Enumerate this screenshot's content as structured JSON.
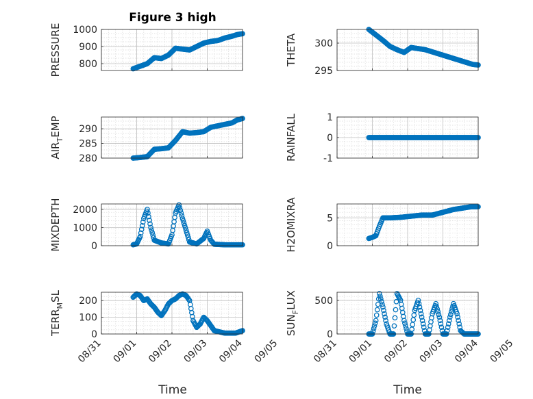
{
  "figure": {
    "title": "Figure 3 high",
    "xlabel": "Time",
    "marker_color": "#0072BD"
  },
  "chart_data": [
    {
      "type": "scatter",
      "name": "PRESSURE",
      "ylabel": "PRESSURE",
      "ylim": [
        760,
        1000
      ],
      "yticks": [
        800,
        900,
        1000
      ],
      "grid": true,
      "x_day_range": [
        0.0,
        4.0
      ],
      "x": [
        0.9,
        1.1,
        1.3,
        1.5,
        1.7,
        1.9,
        2.1,
        2.3,
        2.5,
        2.7,
        2.9,
        3.1,
        3.3,
        3.5,
        3.7,
        3.85,
        4.0
      ],
      "y": [
        770,
        785,
        800,
        835,
        830,
        850,
        890,
        885,
        880,
        900,
        920,
        930,
        935,
        950,
        960,
        970,
        975
      ]
    },
    {
      "type": "scatter",
      "name": "THETA",
      "ylabel": "THETA",
      "ylim": [
        295,
        302.5
      ],
      "yticks": [
        295,
        300
      ],
      "grid": true,
      "x_day_range": [
        0.0,
        4.0
      ],
      "x": [
        0.9,
        1.1,
        1.3,
        1.5,
        1.7,
        1.9,
        2.1,
        2.3,
        2.5,
        2.7,
        2.9,
        3.1,
        3.3,
        3.5,
        3.7,
        3.85,
        4.0
      ],
      "y": [
        302.5,
        301.5,
        300.5,
        299.4,
        298.8,
        298.3,
        299.2,
        299.0,
        298.8,
        298.4,
        298.0,
        297.6,
        297.2,
        296.8,
        296.4,
        296.1,
        296.0
      ]
    },
    {
      "type": "scatter",
      "name": "AIR_TEMP",
      "ylabel": "AIR",
      "ylabel_sub": "T",
      "ylabel_suffix": "EMP",
      "ylim": [
        280,
        294
      ],
      "yticks": [
        280,
        285,
        290
      ],
      "grid": true,
      "x_day_range": [
        0.0,
        4.0
      ],
      "x": [
        0.9,
        1.1,
        1.3,
        1.5,
        1.7,
        1.9,
        2.1,
        2.3,
        2.5,
        2.7,
        2.9,
        3.1,
        3.3,
        3.5,
        3.7,
        3.85,
        4.0
      ],
      "y": [
        280.0,
        280.2,
        280.5,
        283.0,
        283.2,
        283.5,
        286.0,
        289.0,
        288.5,
        288.7,
        289.0,
        290.5,
        291.0,
        291.5,
        292.0,
        293.0,
        293.5
      ]
    },
    {
      "type": "scatter",
      "name": "RAINFALL",
      "ylabel": "RAINFALL",
      "ylim": [
        -1,
        1
      ],
      "yticks": [
        -1,
        0,
        1
      ],
      "grid": true,
      "x_day_range": [
        0.0,
        4.0
      ],
      "x": [
        0.9,
        1.2,
        1.5,
        1.8,
        2.1,
        2.4,
        2.7,
        3.0,
        3.3,
        3.6,
        3.9,
        4.0
      ],
      "y": [
        0,
        0,
        0,
        0,
        0,
        0,
        0,
        0,
        0,
        0,
        0,
        0
      ]
    },
    {
      "type": "scatter",
      "name": "MIXDEPTH",
      "ylabel": "MIXDEPTH",
      "ylim": [
        0,
        2300
      ],
      "yticks": [
        0,
        1000,
        2000
      ],
      "grid": true,
      "x_day_range": [
        0.0,
        4.0
      ],
      "x": [
        0.9,
        1.0,
        1.1,
        1.2,
        1.3,
        1.4,
        1.5,
        1.7,
        1.9,
        2.0,
        2.1,
        2.2,
        2.3,
        2.5,
        2.7,
        2.9,
        3.0,
        3.1,
        3.2,
        3.5,
        3.8,
        4.0
      ],
      "y": [
        50,
        100,
        500,
        1500,
        2000,
        1000,
        300,
        150,
        100,
        600,
        1800,
        2250,
        1500,
        200,
        100,
        400,
        800,
        300,
        80,
        50,
        50,
        50
      ]
    },
    {
      "type": "scatter",
      "name": "H2OMIXRA",
      "ylabel": "H2OMIXRA",
      "ylim": [
        0,
        7.5
      ],
      "yticks": [
        0,
        5
      ],
      "grid": true,
      "x_day_range": [
        0.0,
        4.0
      ],
      "x": [
        0.9,
        1.0,
        1.1,
        1.2,
        1.3,
        1.5,
        1.8,
        2.1,
        2.4,
        2.7,
        3.0,
        3.3,
        3.6,
        3.8,
        4.0
      ],
      "y": [
        1.3,
        1.5,
        1.8,
        3.5,
        5.0,
        5.0,
        5.1,
        5.3,
        5.5,
        5.5,
        6.0,
        6.5,
        6.8,
        7.0,
        7.0
      ]
    },
    {
      "type": "scatter",
      "name": "TERR_MSL",
      "ylabel": "TERR",
      "ylabel_sub": "M",
      "ylabel_suffix": "SL",
      "ylim": [
        0,
        250
      ],
      "yticks": [
        0,
        100,
        200
      ],
      "grid": true,
      "x_day_range": [
        0.0,
        4.0
      ],
      "x": [
        0.9,
        1.0,
        1.1,
        1.2,
        1.3,
        1.4,
        1.5,
        1.6,
        1.7,
        1.8,
        1.9,
        2.0,
        2.1,
        2.2,
        2.3,
        2.4,
        2.5,
        2.6,
        2.7,
        2.8,
        2.9,
        3.0,
        3.1,
        3.2,
        3.4,
        3.5,
        3.6,
        3.7,
        3.8,
        4.0
      ],
      "y": [
        220,
        240,
        230,
        200,
        210,
        180,
        160,
        130,
        110,
        140,
        180,
        200,
        210,
        230,
        240,
        230,
        200,
        80,
        40,
        60,
        100,
        80,
        50,
        20,
        10,
        5,
        5,
        5,
        5,
        20
      ]
    },
    {
      "type": "scatter",
      "name": "SUN_FLUX",
      "ylabel": "SUN",
      "ylabel_sub": "F",
      "ylabel_suffix": "LUX",
      "ylim": [
        0,
        620
      ],
      "yticks": [
        0,
        500
      ],
      "grid": true,
      "x_day_range": [
        0.0,
        4.0
      ],
      "x": [
        0.9,
        1.0,
        1.1,
        1.2,
        1.3,
        1.4,
        1.5,
        1.6,
        1.7,
        1.8,
        1.9,
        2.0,
        2.1,
        2.2,
        2.3,
        2.4,
        2.5,
        2.6,
        2.7,
        2.8,
        2.9,
        3.0,
        3.1,
        3.2,
        3.3,
        3.4,
        3.5,
        3.6,
        3.7,
        3.8,
        3.9,
        4.0
      ],
      "y": [
        0,
        0,
        200,
        600,
        400,
        150,
        0,
        0,
        600,
        500,
        200,
        0,
        0,
        350,
        500,
        250,
        0,
        0,
        300,
        450,
        250,
        0,
        0,
        250,
        450,
        300,
        50,
        0,
        0,
        0,
        0,
        0
      ]
    }
  ],
  "x_ticks": [
    "08/31",
    "09/01",
    "09/02",
    "09/03",
    "09/04",
    "09/05"
  ]
}
